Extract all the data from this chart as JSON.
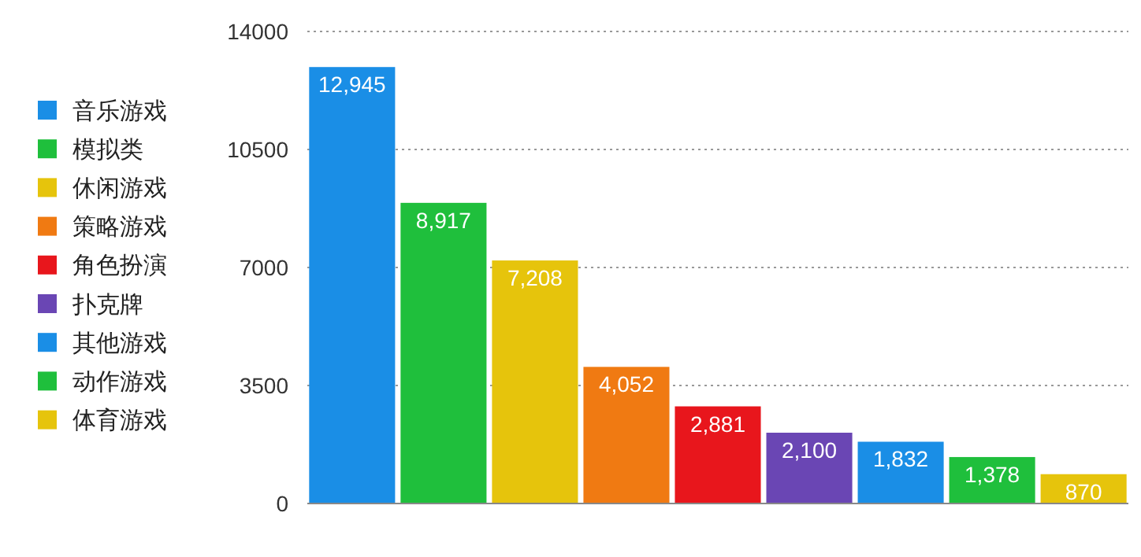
{
  "chart_data": {
    "type": "bar",
    "categories": [
      null,
      null,
      null,
      null,
      null,
      null,
      null,
      null,
      null
    ],
    "stacked": true,
    "series": [
      {
        "name": "音乐游戏",
        "color": "#1a8ee6",
        "values": [
          12945,
          null,
          null,
          null,
          null,
          null,
          null,
          null,
          null
        ],
        "value_labels": [
          "12,945",
          null,
          null,
          null,
          null,
          null,
          null,
          null,
          null
        ]
      },
      {
        "name": "模拟类",
        "color": "#1fbf3c",
        "values": [
          null,
          8917,
          null,
          null,
          null,
          null,
          null,
          null,
          null
        ],
        "value_labels": [
          null,
          "8,917",
          null,
          null,
          null,
          null,
          null,
          null,
          null
        ]
      },
      {
        "name": "休闲游戏",
        "color": "#e6c40c",
        "values": [
          null,
          null,
          7208,
          null,
          null,
          null,
          null,
          null,
          null
        ],
        "value_labels": [
          null,
          null,
          "7,208",
          null,
          null,
          null,
          null,
          null,
          null
        ]
      },
      {
        "name": "策略游戏",
        "color": "#f07a12",
        "values": [
          null,
          null,
          null,
          4052,
          null,
          null,
          null,
          null,
          null
        ],
        "value_labels": [
          null,
          null,
          null,
          "4,052",
          null,
          null,
          null,
          null,
          null
        ]
      },
      {
        "name": "角色扮演",
        "color": "#e8161c",
        "values": [
          null,
          null,
          null,
          null,
          2881,
          null,
          null,
          null,
          null
        ],
        "value_labels": [
          null,
          null,
          null,
          null,
          "2,881",
          null,
          null,
          null,
          null
        ]
      },
      {
        "name": "扑克牌",
        "color": "#6a46b4",
        "values": [
          null,
          null,
          null,
          null,
          null,
          2100,
          null,
          null,
          null
        ],
        "value_labels": [
          null,
          null,
          null,
          null,
          null,
          "2,100",
          null,
          null,
          null
        ]
      },
      {
        "name": "其他游戏",
        "color": "#1a8ee6",
        "values": [
          null,
          null,
          null,
          null,
          null,
          null,
          1832,
          null,
          null
        ],
        "value_labels": [
          null,
          null,
          null,
          null,
          null,
          null,
          "1,832",
          null,
          null
        ]
      },
      {
        "name": "动作游戏",
        "color": "#1fbf3c",
        "values": [
          null,
          null,
          null,
          null,
          null,
          null,
          null,
          1378,
          null
        ],
        "value_labels": [
          null,
          null,
          null,
          null,
          null,
          null,
          null,
          "1,378",
          null
        ]
      },
      {
        "name": "体育游戏",
        "color": "#e6c40c",
        "values": [
          null,
          null,
          null,
          null,
          null,
          null,
          null,
          null,
          870
        ],
        "value_labels": [
          null,
          null,
          null,
          null,
          null,
          null,
          null,
          null,
          "870"
        ]
      }
    ],
    "ylim": [
      0,
      14000
    ],
    "yticks": [
      0,
      3500,
      7000,
      10500,
      14000
    ],
    "grid": "y",
    "legend": "left",
    "tick_labels": "y"
  }
}
